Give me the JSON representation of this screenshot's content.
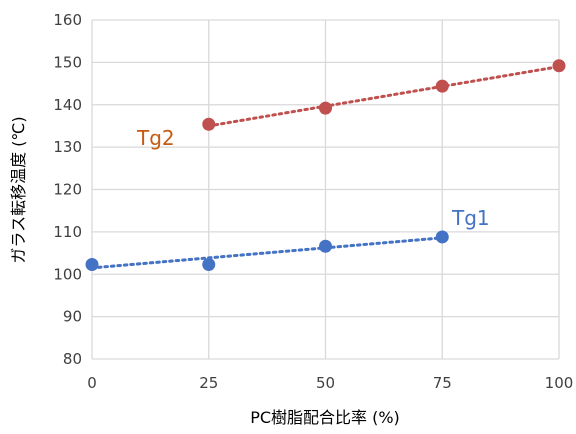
{
  "chart_data": {
    "type": "scatter",
    "title": "",
    "xlabel": "PC樹脂配合比率 (%)",
    "ylabel": "ガラス転移温度 (℃)",
    "xlim": [
      0,
      100
    ],
    "ylim": [
      80,
      160
    ],
    "xticks": [
      0,
      25,
      50,
      75,
      100
    ],
    "yticks": [
      80,
      90,
      100,
      110,
      120,
      130,
      140,
      150,
      160
    ],
    "grid": true,
    "series": [
      {
        "name": "Tg1",
        "color": "#4472C4",
        "x": [
          0,
          25,
          50,
          75
        ],
        "y": [
          102.3,
          102.3,
          106.6,
          108.8
        ],
        "trendline": {
          "type": "linear",
          "style": "dotted",
          "from": [
            0,
            101.5
          ],
          "to": [
            75,
            108.6
          ]
        }
      },
      {
        "name": "Tg2",
        "color": "#C0504D",
        "x": [
          25,
          50,
          75,
          100
        ],
        "y": [
          135.4,
          139.2,
          144.4,
          149.2
        ],
        "trendline": {
          "type": "linear",
          "style": "dotted",
          "from": [
            25,
            135.0
          ],
          "to": [
            100,
            149.0
          ]
        }
      }
    ]
  },
  "colors": {
    "tg1": "#4472C4",
    "tg2": "#C0504D",
    "grid": "#D9D9D9",
    "tg2_label": "#C55A11"
  }
}
